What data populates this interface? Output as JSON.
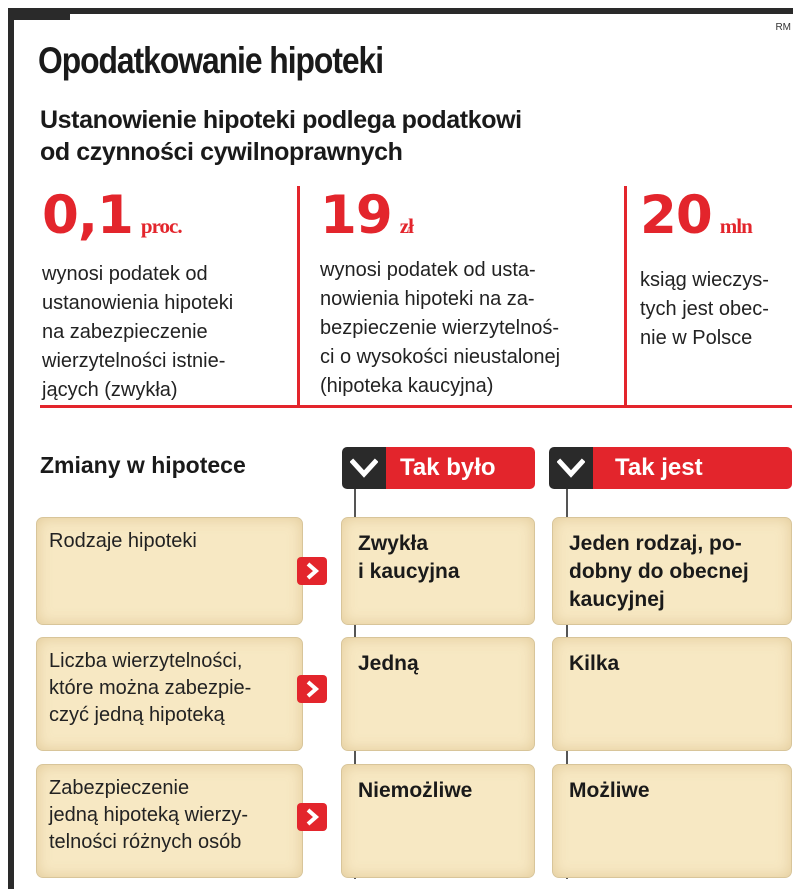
{
  "credit": "RM",
  "title": "Opodatkowanie hipoteki",
  "subtitle": {
    "line1": "Ustanowienie hipoteki podlega podatkowi",
    "line2": "od czynności cywilnoprawnych"
  },
  "stats": [
    {
      "value": "0,1",
      "unit": "proc.",
      "lines": [
        "wynosi podatek od",
        "ustanowienia hipoteki",
        "na zabezpieczenie",
        "wierzytelności istnie-",
        "jących (zwykła)"
      ]
    },
    {
      "value": "19",
      "unit": "zł",
      "lines": [
        "wynosi podatek od usta-",
        "nowienia hipoteki na za-",
        "bezpieczenie wierzytelnoś-",
        "ci o wysokości nieustalonej",
        "(hipoteka kaucyjna)"
      ]
    },
    {
      "value": "20",
      "unit": "mln",
      "lines": [
        "ksiąg wieczys-",
        "tych jest obec-",
        "nie w Polsce"
      ]
    }
  ],
  "changes": {
    "title": "Zmiany w hipotece",
    "col_before": "Tak było",
    "col_after": "Tak jest",
    "rows": [
      {
        "label": [
          "Rodzaje hipoteki"
        ],
        "before": [
          "Zwykła",
          "i kaucyjna"
        ],
        "after": [
          "Jeden rodzaj, po-",
          "dobny do obecnej",
          "kaucyjnej"
        ]
      },
      {
        "label": [
          "Liczba wierzytelności,",
          "które można zabezpie-",
          "czyć jedną hipoteką"
        ],
        "before": [
          "Jedną"
        ],
        "after": [
          "Kilka"
        ]
      },
      {
        "label": [
          "Zabezpieczenie",
          "jedną hipoteką wierzy-",
          "telności różnych osób"
        ],
        "before": [
          "Niemożliwe"
        ],
        "after": [
          "Możliwe"
        ]
      }
    ]
  },
  "colors": {
    "accent": "#e3252c",
    "box": "#f7e8c3",
    "dark": "#2a2a2a"
  }
}
